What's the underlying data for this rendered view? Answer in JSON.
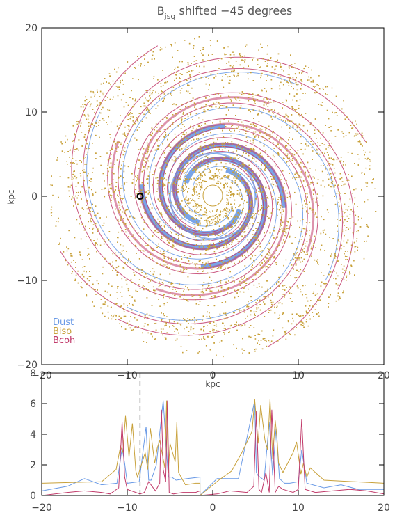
{
  "title": {
    "main": "B",
    "sub": "jsq",
    "rest": " shifted −45 degrees"
  },
  "colors": {
    "dust": "#6a9ae6",
    "biso": "#c8a13a",
    "bcoh": "#c13a6a"
  },
  "chart_data": [
    {
      "type": "scatter",
      "title": "Bjsq shifted −45 degrees",
      "xlabel": "kpc",
      "ylabel": "kpc",
      "xlim": [
        -20,
        20
      ],
      "ylim": [
        -20,
        20
      ],
      "xticks": [
        "−20",
        "−10",
        "0",
        "10",
        "20"
      ],
      "yticks": [
        "20",
        "10",
        "0",
        "−10",
        "−20"
      ],
      "legend": {
        "placement": "bottom-left",
        "entries": [
          {
            "label": "Dust",
            "color": "#6a9ae6"
          },
          {
            "label": "Biso",
            "color": "#c8a13a"
          },
          {
            "label": "Bcoh",
            "color": "#c13a6a"
          }
        ]
      },
      "marker": {
        "name": "observer position",
        "x": -8.5,
        "y": 0
      }
    },
    {
      "type": "line",
      "xlim": [
        -20,
        20
      ],
      "ylim": [
        0,
        8
      ],
      "xticks": [
        "−20",
        "−10",
        "0",
        "10",
        "20"
      ],
      "yticks": [
        "8",
        "6",
        "4",
        "2",
        "0"
      ],
      "vline_x": -8.5,
      "series": [
        {
          "label": "Dust",
          "x": [
            -20,
            -17,
            -15,
            -13,
            -11.2,
            -10.6,
            -10.3,
            -10,
            -8.6,
            -7.8,
            -7.5,
            -7.2,
            -6.6,
            -5.8,
            -5.2,
            -4.8,
            -4.3,
            -3,
            -1.5,
            -1.5,
            0.5,
            3,
            4.9,
            5.1,
            5.3,
            6,
            6.6,
            7,
            7.4,
            7.8,
            8.4,
            9,
            10,
            10.4,
            11,
            13,
            15,
            17,
            20
          ],
          "y": [
            0.3,
            0.6,
            1.1,
            0.7,
            0.8,
            3.1,
            2.1,
            0.8,
            0.9,
            4.5,
            1,
            1,
            2,
            6.2,
            1.2,
            1.2,
            1,
            1.1,
            1.2,
            0,
            1.1,
            1.1,
            6.2,
            1.5,
            1.3,
            1,
            4.8,
            1.3,
            4.4,
            1.1,
            0.8,
            0.8,
            0.9,
            3,
            0.8,
            0.5,
            0.7,
            0.4,
            0.4
          ]
        },
        {
          "label": "Biso",
          "x": [
            -20,
            -13,
            -11.3,
            -10.8,
            -10.5,
            -10.2,
            -9.8,
            -9.4,
            -9,
            -8.8,
            -7.9,
            -7.6,
            -7.3,
            -6.8,
            -6.5,
            -6.2,
            -5.6,
            -5.4,
            -5.2,
            -5,
            -4.4,
            -4.2,
            -4,
            -3.2,
            -2,
            -1.5,
            -1.5,
            0.7,
            2.2,
            3.4,
            4.6,
            4.9,
            5.3,
            5.6,
            6.1,
            6.4,
            6.7,
            7,
            7.3,
            7.5,
            7.7,
            8.2,
            9.4,
            9.8,
            10.3,
            10.6,
            11,
            11.4,
            13,
            20
          ],
          "y": [
            0.8,
            0.9,
            1.7,
            3.2,
            2.8,
            5.2,
            2.5,
            4.7,
            1.6,
            1.2,
            2.8,
            1.7,
            4.4,
            2.1,
            3.1,
            3.6,
            1.8,
            6.2,
            1.5,
            3.4,
            2.2,
            4.8,
            1.5,
            0.7,
            0.8,
            0.8,
            0,
            1,
            1.6,
            2.8,
            4.2,
            6.3,
            3.4,
            5.9,
            3.6,
            3,
            6.3,
            2.4,
            4.9,
            3.8,
            2.1,
            1.5,
            2.8,
            3.5,
            1.4,
            2.1,
            1.2,
            1.8,
            1,
            0.8
          ]
        },
        {
          "label": "Bcoh",
          "x": [
            -20,
            -17,
            -15,
            -13,
            -12,
            -11,
            -10.6,
            -10.3,
            -10,
            -9,
            -8.5,
            -8,
            -7.5,
            -6.7,
            -6.2,
            -6,
            -5.8,
            -5.5,
            -5.3,
            -5.1,
            -4.6,
            -3.5,
            -2,
            -1.5,
            -1.5,
            0.5,
            2,
            4,
            4.8,
            5.1,
            5.4,
            5.7,
            6.2,
            6.6,
            6.9,
            7.3,
            7.7,
            8.2,
            9.4,
            10,
            10.4,
            10.8,
            12,
            14,
            16,
            18,
            20
          ],
          "y": [
            0,
            0.2,
            0.3,
            0.2,
            0.1,
            0.5,
            4.8,
            1.2,
            0.4,
            0.2,
            0.1,
            0.2,
            0.9,
            0.3,
            0.8,
            5.6,
            1.7,
            0.9,
            6.2,
            0.2,
            0.1,
            0.2,
            0.2,
            0.3,
            0,
            0.1,
            0.3,
            0.2,
            0.6,
            5.5,
            0.4,
            0.2,
            1.5,
            0.2,
            5.6,
            0.2,
            0.6,
            0.4,
            0.2,
            0.4,
            5,
            0.4,
            0.2,
            0.3,
            0.4,
            0.3,
            0.1
          ]
        }
      ]
    }
  ]
}
